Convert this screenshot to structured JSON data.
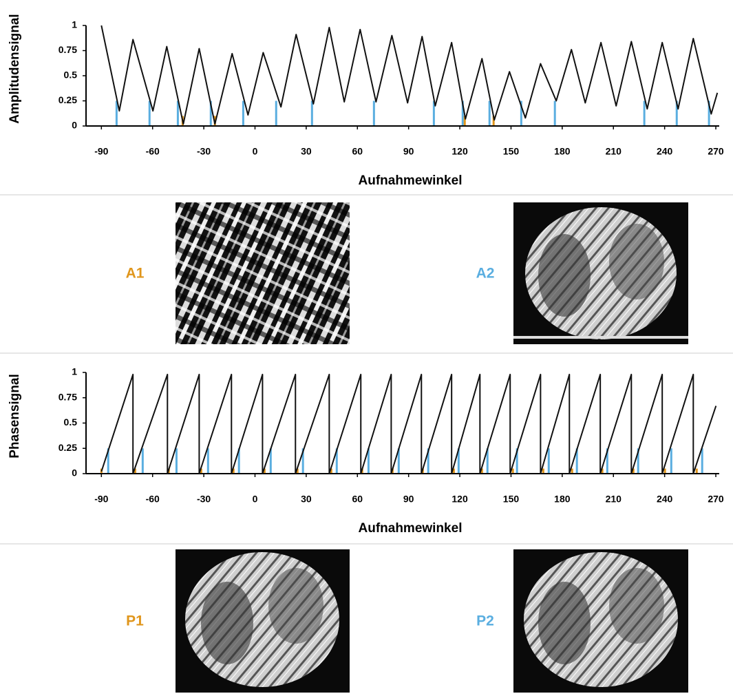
{
  "chart_data": [
    {
      "type": "line",
      "y_label": "Amplitudensignal",
      "x_label": "Aufnahmewinkel",
      "xlim": [
        -99,
        272
      ],
      "xticks": [
        -90,
        -60,
        -30,
        0,
        30,
        60,
        90,
        120,
        150,
        180,
        210,
        240,
        270
      ],
      "ylim": [
        0,
        1
      ],
      "yticks": [
        0,
        0.25,
        0.5,
        0.75,
        1
      ],
      "series": [
        {
          "color": "#111111",
          "x": [
            -90,
            -79.5,
            -71.5,
            -59.8,
            -51.7,
            -42.0,
            -32.7,
            -23.5,
            -13.4,
            -4.1,
            4.8,
            15.2,
            24.1,
            34.2,
            43.5,
            52.3,
            61.6,
            70.9,
            80.2,
            89.4,
            97.9,
            105.6,
            115.2,
            123.3,
            133.0,
            140.2,
            149.1,
            158.4,
            167.3,
            176.5,
            185.4,
            193.5,
            202.7,
            211.6,
            220.5,
            229.8,
            238.6,
            247.9,
            256.8,
            267.3,
            270.9
          ],
          "values": [
            1.0,
            0.15,
            0.86,
            0.15,
            0.79,
            0.02,
            0.77,
            0.02,
            0.72,
            0.11,
            0.73,
            0.19,
            0.91,
            0.22,
            0.98,
            0.24,
            0.96,
            0.24,
            0.9,
            0.23,
            0.89,
            0.2,
            0.83,
            0.07,
            0.67,
            0.06,
            0.54,
            0.08,
            0.62,
            0.25,
            0.76,
            0.23,
            0.83,
            0.2,
            0.84,
            0.17,
            0.83,
            0.17,
            0.87,
            0.12,
            0.33
          ]
        }
      ],
      "markers": [
        {
          "color": "#5aaee0",
          "level": 0.25,
          "x": [
            -81.1,
            -61.8,
            -45.2,
            -25.9,
            -6.9,
            12.4,
            33.4,
            69.7,
            104.8,
            121.7,
            137.4,
            156.0,
            175.7,
            228.1,
            247.1,
            266.0
          ]
        },
        {
          "color": "#e0961c",
          "level": 0.1,
          "x": [
            -42.4,
            -23.5,
            122.9,
            139.8
          ]
        }
      ]
    },
    {
      "type": "line",
      "y_label": "Phasensignal",
      "x_label": "Aufnahmewinkel",
      "xlim": [
        -99,
        272
      ],
      "xticks": [
        -90,
        -60,
        -30,
        0,
        30,
        60,
        90,
        120,
        150,
        180,
        210,
        240,
        270
      ],
      "ylim": [
        0,
        1
      ],
      "yticks": [
        0,
        0.25,
        0.5,
        0.75,
        1
      ],
      "series": [
        {
          "color": "#111111",
          "x": [
            -90,
            -71.5,
            -71.5,
            -51.3,
            -51.3,
            -32.7,
            -32.7,
            -13.8,
            -13.8,
            4.4,
            4.4,
            23.7,
            23.7,
            43.5,
            43.5,
            62.0,
            62.0,
            79.8,
            79.8,
            97.5,
            97.5,
            115.2,
            115.2,
            131.8,
            131.8,
            149.5,
            149.5,
            167.3,
            167.3,
            184.2,
            184.2,
            202.3,
            202.3,
            220.5,
            220.5,
            238.6,
            238.6,
            256.8,
            256.8,
            270.1
          ],
          "values": [
            0.02,
            0.98,
            0,
            0.98,
            0,
            0.98,
            0,
            0.98,
            0,
            0.98,
            0,
            0.98,
            0,
            0.98,
            0,
            0.98,
            0,
            0.98,
            0,
            0.98,
            0,
            0.98,
            0,
            0.98,
            0,
            0.98,
            0,
            0.98,
            0,
            0.98,
            0,
            0.98,
            0,
            0.98,
            0,
            0.98,
            0,
            0.98,
            0,
            0.67
          ]
        }
      ],
      "markers": [
        {
          "color": "#5aaee0",
          "level": 0.25,
          "x": [
            -86.0,
            -65.8,
            -46.0,
            -27.5,
            -9.4,
            9.2,
            28.1,
            47.9,
            66.5,
            84.2,
            101.5,
            119.3,
            136.2,
            153.5,
            172.1,
            188.6,
            206.4,
            224.5,
            243.9,
            262.0
          ]
        },
        {
          "color": "#e0961c",
          "level": 0.05,
          "x": [
            -90,
            -70.2,
            -50.5,
            -31.5,
            -12.6,
            5.6,
            24.9,
            44.7,
            62.8,
            80.6,
            98.3,
            116.5,
            133.0,
            151.1,
            168.9,
            185.8,
            203.5,
            221.7,
            240.2,
            258.8
          ]
        }
      ]
    }
  ],
  "images": [
    {
      "label": "A1"
    },
    {
      "label": "A2"
    },
    {
      "label": "P1"
    },
    {
      "label": "P2"
    }
  ]
}
